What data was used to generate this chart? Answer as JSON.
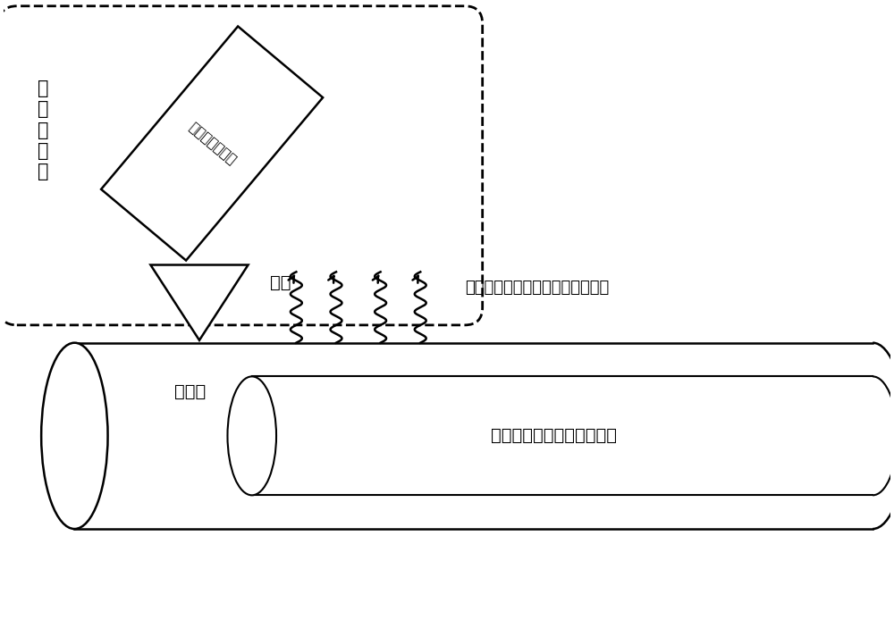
{
  "bg_color": "#ffffff",
  "line_color": "#000000",
  "fig_width": 10.0,
  "fig_height": 6.94,
  "dpi": 100,
  "text_radiometer_label": "微\n波\n辐\n射\n计",
  "text_channel_label": "微波辐射计通道",
  "text_antenna_label": "天线",
  "text_insulation_label": "绍缘层",
  "text_cable_label": "电缆接头内部铜芯（发热）",
  "text_signal_label": "微波热辐射信号（能穿透绍缘层）",
  "font_size_main": 15,
  "font_size_small": 13,
  "font_size_label": 14
}
